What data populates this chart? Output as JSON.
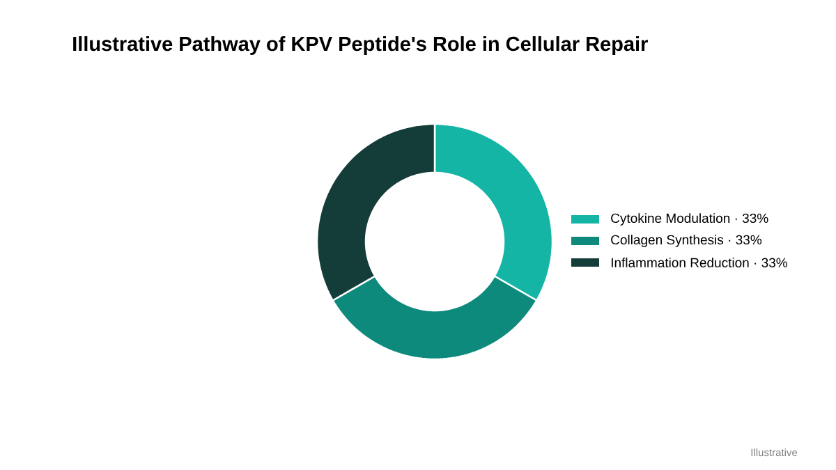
{
  "chart_data": {
    "type": "donut",
    "title": "Illustrative Pathway of KPV Peptide's Role in Cellular Repair",
    "categories": [
      "Cytokine Modulation · 33%",
      "Collagen Synthesis · 33%",
      "Inflammation Reduction · 33%"
    ],
    "values": [
      33,
      33,
      33
    ],
    "colors": [
      "#14b5a5",
      "#0e8a7d",
      "#143c38"
    ],
    "legend": "right",
    "annotations": [
      "Illustrative"
    ]
  }
}
